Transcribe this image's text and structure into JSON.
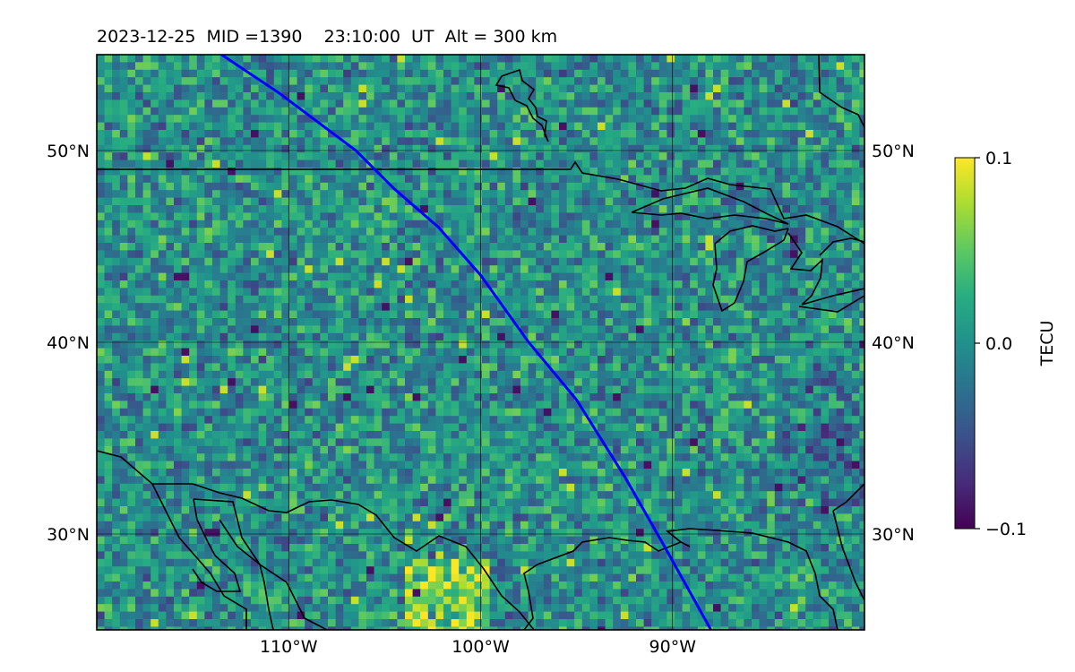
{
  "title": "2023-12-25  MID =1390    23:10:00  UT  Alt = 300 km",
  "map": {
    "lon_range": [
      -120,
      -80
    ],
    "lat_range": [
      25,
      55
    ],
    "lon_ticks": [
      {
        "value": -110,
        "label": "110°W"
      },
      {
        "value": -100,
        "label": "100°W"
      },
      {
        "value": -90,
        "label": "90°W"
      }
    ],
    "lat_ticks": [
      {
        "value": 30,
        "label": "30°N"
      },
      {
        "value": 40,
        "label": "40°N"
      },
      {
        "value": 50,
        "label": "50°N"
      }
    ],
    "track_color": "#0000ff",
    "track": [
      [
        -113.5,
        55
      ],
      [
        -110.5,
        53
      ],
      [
        -106.5,
        50
      ],
      [
        -104.5,
        48
      ],
      [
        -102.2,
        46
      ],
      [
        -100,
        43.5
      ],
      [
        -97.5,
        40
      ],
      [
        -95,
        37
      ],
      [
        -92.5,
        33
      ],
      [
        -90.5,
        29.5
      ],
      [
        -88,
        25
      ]
    ]
  },
  "colorbar": {
    "label": "TECU",
    "min": -0.1,
    "max": 0.1,
    "ticks": [
      {
        "value": 0.1,
        "label": "0.1"
      },
      {
        "value": 0.0,
        "label": "0.0"
      },
      {
        "value": -0.1,
        "label": "−0.1"
      }
    ],
    "colormap": "viridis"
  }
}
